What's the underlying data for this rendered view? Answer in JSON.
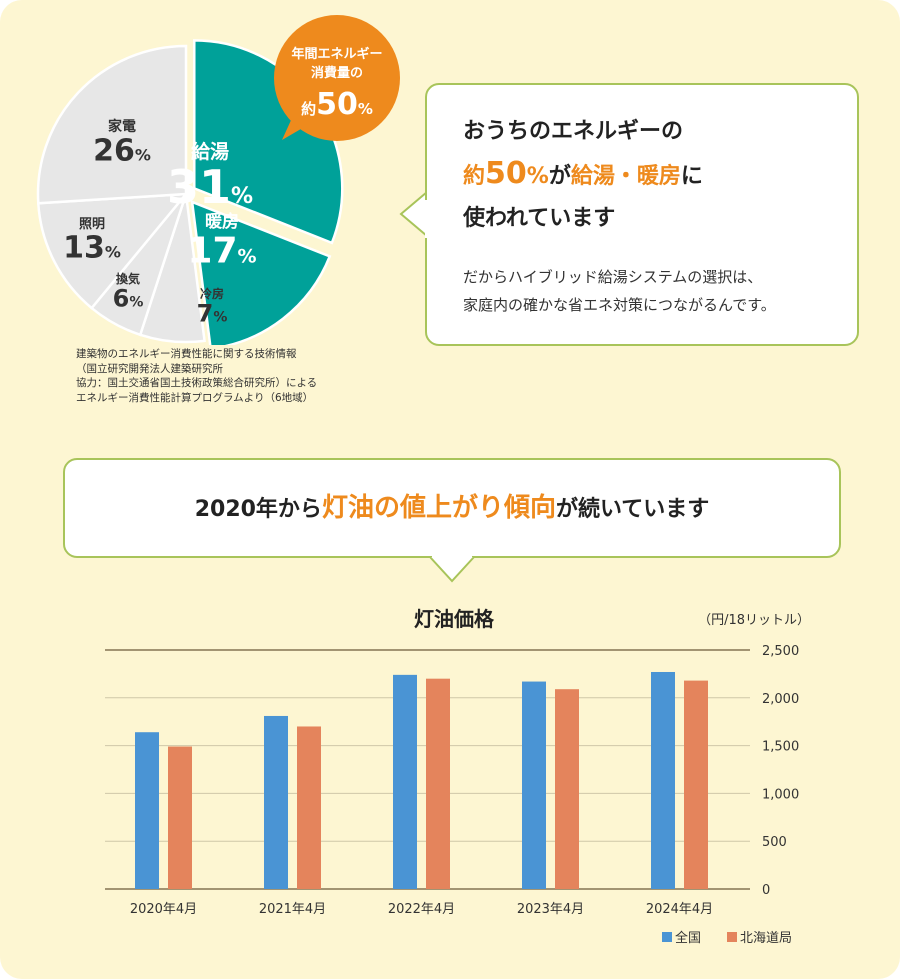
{
  "pie": {
    "slices": [
      {
        "label": "給湯",
        "value": 31,
        "color": "#00a199"
      },
      {
        "label": "暖房",
        "value": 17,
        "color": "#00a199"
      },
      {
        "label": "冷房",
        "value": 7,
        "color": "#e7e7e7"
      },
      {
        "label": "換気",
        "value": 6,
        "color": "#e7e7e7"
      },
      {
        "label": "照明",
        "value": 13,
        "color": "#e7e7e7"
      },
      {
        "label": "家電",
        "value": 26,
        "color": "#e7e7e7"
      }
    ],
    "percent_sign": "%",
    "badge": {
      "line1": "年間エネルギー",
      "line2": "消費量の",
      "prefix": "約",
      "value": "50",
      "unit": "%"
    },
    "source_note": "建築物のエネルギー消費性能に関する技術情報\n（国立研究開発法人建築研究所\n協力：国土交通省国土技術政策総合研究所）による\nエネルギー消費性能計算プログラムより（6地域）"
  },
  "callout1": {
    "line1": "おうちのエネルギーの",
    "line2_prefix": "約",
    "line2_value": "50",
    "line2_unit": "%",
    "line2_mid": "が",
    "line2_highlight": "給湯・暖房",
    "line2_suffix": "に",
    "line3": "使われています",
    "body1": "だからハイブリッド給湯システムの選択は、",
    "body2": "家庭内の確かな省エネ対策につながるんです。"
  },
  "callout2": {
    "prefix": "2020年から",
    "highlight": "灯油の値上がり傾向",
    "suffix": "が続いています"
  },
  "colors": {
    "accent": "#ee8a1d",
    "teal": "#00a199",
    "national": "#4a94d4",
    "hokkaido": "#e4845c",
    "border": "#a8c45a",
    "background": "#fdf6d2"
  },
  "chart_data": {
    "type": "bar",
    "title": "灯油価格",
    "unit_label": "（円/18リットル）",
    "categories": [
      "2020年4月",
      "2021年4月",
      "2022年4月",
      "2023年4月",
      "2024年4月"
    ],
    "series": [
      {
        "name": "全国",
        "color": "#4a94d4",
        "values": [
          1640,
          1810,
          2240,
          2170,
          2270
        ]
      },
      {
        "name": "北海道局",
        "color": "#e4845c",
        "values": [
          1490,
          1700,
          2200,
          2090,
          2180
        ]
      }
    ],
    "ylim": [
      0,
      2500
    ],
    "yticks": [
      "0",
      "500",
      "1,000",
      "1,500",
      "2,000",
      "2,500"
    ],
    "ytick_values": [
      0,
      500,
      1000,
      1500,
      2000,
      2500
    ],
    "grid": true,
    "legend": "bottom-right"
  }
}
